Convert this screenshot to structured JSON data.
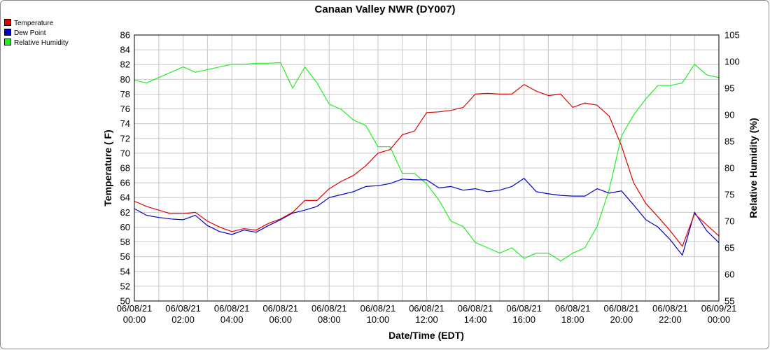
{
  "chart_data": {
    "type": "line",
    "title": "Canaan Valley NWR (DY007)",
    "xlabel": "Date/Time (EDT)",
    "ylabel": "Temperature ( F)",
    "y2label": "Relative Humidity (%)",
    "xlim": [
      "06/08/21 00:00",
      "06/09/21 00:00"
    ],
    "ylim": [
      50,
      86
    ],
    "y2lim": [
      55,
      105
    ],
    "grid": true,
    "legend_position": "top-left, outside plot",
    "x_ticks": [
      {
        "date": "06/08/21",
        "time": "00:00"
      },
      {
        "date": "06/08/21",
        "time": "02:00"
      },
      {
        "date": "06/08/21",
        "time": "04:00"
      },
      {
        "date": "06/08/21",
        "time": "06:00"
      },
      {
        "date": "06/08/21",
        "time": "08:00"
      },
      {
        "date": "06/08/21",
        "time": "10:00"
      },
      {
        "date": "06/08/21",
        "time": "12:00"
      },
      {
        "date": "06/08/21",
        "time": "14:00"
      },
      {
        "date": "06/08/21",
        "time": "16:00"
      },
      {
        "date": "06/08/21",
        "time": "18:00"
      },
      {
        "date": "06/08/21",
        "time": "20:00"
      },
      {
        "date": "06/08/21",
        "time": "22:00"
      },
      {
        "date": "06/09/21",
        "time": "00:00"
      }
    ],
    "y_ticks": [
      50,
      52,
      54,
      56,
      58,
      60,
      62,
      64,
      66,
      68,
      70,
      72,
      74,
      76,
      78,
      80,
      82,
      84,
      86
    ],
    "y2_ticks": [
      55,
      60,
      65,
      70,
      75,
      80,
      85,
      90,
      95,
      100,
      105
    ],
    "x_hours": [
      0,
      0.5,
      1,
      1.5,
      2,
      2.5,
      3,
      3.5,
      4,
      4.5,
      5,
      5.5,
      6,
      6.5,
      7,
      7.5,
      8,
      8.5,
      9,
      9.5,
      10,
      10.5,
      11,
      11.5,
      12,
      12.5,
      13,
      13.5,
      14,
      14.5,
      15,
      15.5,
      16,
      16.5,
      17,
      17.5,
      18,
      18.5,
      19,
      19.5,
      20,
      20.5,
      21,
      21.5,
      22,
      22.5,
      23,
      23.5,
      24
    ],
    "series": [
      {
        "name": "Temperature",
        "axis": "left",
        "color": "#e00000",
        "values": [
          63.5,
          62.8,
          62.3,
          61.8,
          61.8,
          62.0,
          60.8,
          60.0,
          59.4,
          59.8,
          59.6,
          60.5,
          61.1,
          62.0,
          63.6,
          63.6,
          65.2,
          66.2,
          67.0,
          68.3,
          70.0,
          70.5,
          72.5,
          73.0,
          75.5,
          75.6,
          75.8,
          76.2,
          78.0,
          78.1,
          78.0,
          78.0,
          79.3,
          78.4,
          77.8,
          78.0,
          76.2,
          76.8,
          76.5,
          75.0,
          71.0,
          66.0,
          63.2,
          61.4,
          59.5,
          57.4,
          61.8,
          60.3,
          58.8
        ]
      },
      {
        "name": "Dew Point",
        "axis": "left",
        "color": "#0000cc",
        "values": [
          62.5,
          61.6,
          61.3,
          61.1,
          61.0,
          61.6,
          60.2,
          59.4,
          59.0,
          59.6,
          59.3,
          60.2,
          61.0,
          61.9,
          62.3,
          62.8,
          64.0,
          64.4,
          64.8,
          65.5,
          65.6,
          65.9,
          66.5,
          66.4,
          66.4,
          65.3,
          65.5,
          65.0,
          65.2,
          64.8,
          65.0,
          65.5,
          66.6,
          64.8,
          64.5,
          64.3,
          64.2,
          64.2,
          65.2,
          64.6,
          64.9,
          63.0,
          61.0,
          60.0,
          58.3,
          56.2,
          62.0,
          59.5,
          57.9
        ]
      },
      {
        "name": "Relative Humidity",
        "axis": "right",
        "color": "#22ee22",
        "values": [
          96.5,
          96.0,
          97.0,
          98.0,
          99.0,
          98.0,
          98.5,
          99.0,
          99.5,
          99.5,
          99.7,
          99.7,
          99.8,
          95.0,
          99.0,
          96.0,
          92.0,
          91.0,
          89.0,
          88.0,
          84.0,
          84.0,
          79.0,
          79.0,
          77.0,
          74.0,
          70.0,
          69.0,
          66.0,
          65.0,
          64.0,
          65.0,
          63.0,
          64.0,
          64.0,
          62.5,
          64.0,
          65.0,
          69.0,
          76.0,
          86.0,
          90.0,
          93.0,
          95.5,
          95.5,
          96.0,
          99.5,
          97.5,
          97.0
        ]
      }
    ]
  }
}
